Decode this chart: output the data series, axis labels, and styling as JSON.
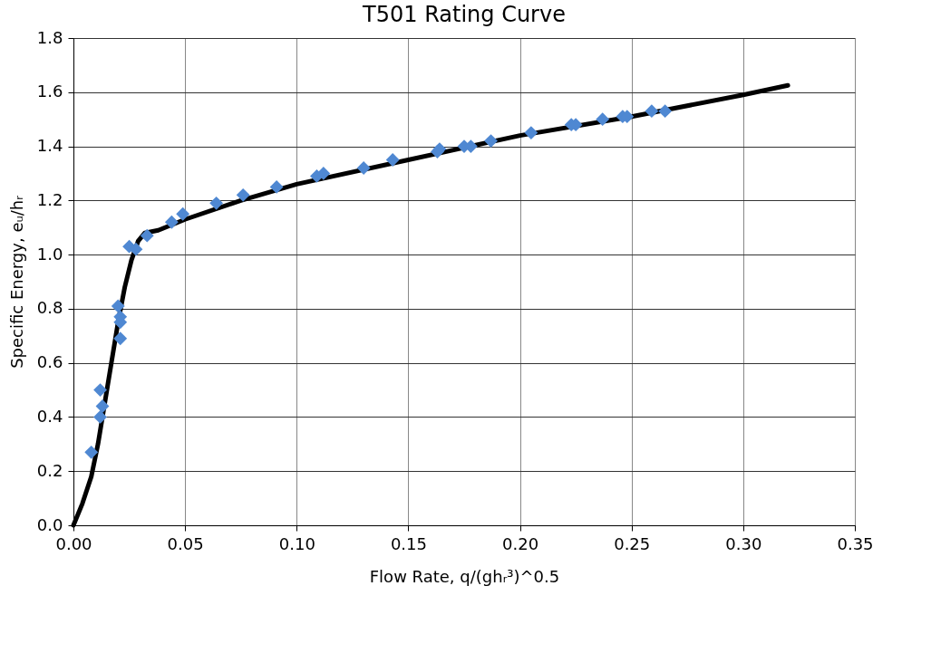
{
  "chart_data": {
    "type": "scatter",
    "title": "T501 Rating Curve",
    "xlabel": "Flow Rate, q/(ghᵣ³)^0.5",
    "ylabel": "Specific Energy, eᵤ/hᵣ",
    "xlim": [
      0,
      0.35
    ],
    "ylim": [
      0,
      1.8
    ],
    "xticks": [
      {
        "value": 0,
        "label": "0.00"
      },
      {
        "value": 0.05,
        "label": "0.05"
      },
      {
        "value": 0.1,
        "label": "0.10"
      },
      {
        "value": 0.15,
        "label": "0.15"
      },
      {
        "value": 0.2,
        "label": "0.20"
      },
      {
        "value": 0.25,
        "label": "0.25"
      },
      {
        "value": 0.3,
        "label": "0.30"
      },
      {
        "value": 0.35,
        "label": "0.35"
      }
    ],
    "yticks": [
      {
        "value": 0,
        "label": "0.0"
      },
      {
        "value": 0.2,
        "label": "0.2"
      },
      {
        "value": 0.4,
        "label": "0.4"
      },
      {
        "value": 0.6,
        "label": "0.6"
      },
      {
        "value": 0.8,
        "label": "0.8"
      },
      {
        "value": 1.0,
        "label": "1.0"
      },
      {
        "value": 1.2,
        "label": "1.2"
      },
      {
        "value": 1.4,
        "label": "1.4"
      },
      {
        "value": 1.6,
        "label": "1.6"
      },
      {
        "value": 1.8,
        "label": "1.8"
      }
    ],
    "grid": true,
    "series": [
      {
        "type": "scatter",
        "marker": "diamond",
        "color": "#4f88d2",
        "x": [
          0.008,
          0.012,
          0.012,
          0.013,
          0.021,
          0.02,
          0.021,
          0.021,
          0.025,
          0.028,
          0.033,
          0.044,
          0.049,
          0.064,
          0.076,
          0.091,
          0.109,
          0.112,
          0.13,
          0.143,
          0.163,
          0.164,
          0.175,
          0.178,
          0.187,
          0.205,
          0.223,
          0.225,
          0.237,
          0.246,
          0.248,
          0.259,
          0.265
        ],
        "values": [
          0.27,
          0.5,
          0.4,
          0.44,
          0.69,
          0.81,
          0.77,
          0.75,
          1.03,
          1.02,
          1.07,
          1.12,
          1.15,
          1.19,
          1.22,
          1.25,
          1.29,
          1.3,
          1.32,
          1.35,
          1.38,
          1.39,
          1.4,
          1.4,
          1.42,
          1.45,
          1.48,
          1.48,
          1.5,
          1.51,
          1.51,
          1.53,
          1.53
        ]
      },
      {
        "type": "line",
        "marker": "none",
        "line_style": "solid",
        "color": "#000000",
        "x": [
          0,
          0.004,
          0.008,
          0.011,
          0.014,
          0.017,
          0.02,
          0.023,
          0.026,
          0.029,
          0.032,
          0.038,
          0.05,
          0.075,
          0.1,
          0.15,
          0.2,
          0.25,
          0.3,
          0.32
        ],
        "values": [
          0,
          0.08,
          0.18,
          0.3,
          0.45,
          0.6,
          0.75,
          0.88,
          0.98,
          1.05,
          1.08,
          1.09,
          1.13,
          1.2,
          1.26,
          1.35,
          1.44,
          1.51,
          1.59,
          1.625
        ]
      }
    ]
  }
}
